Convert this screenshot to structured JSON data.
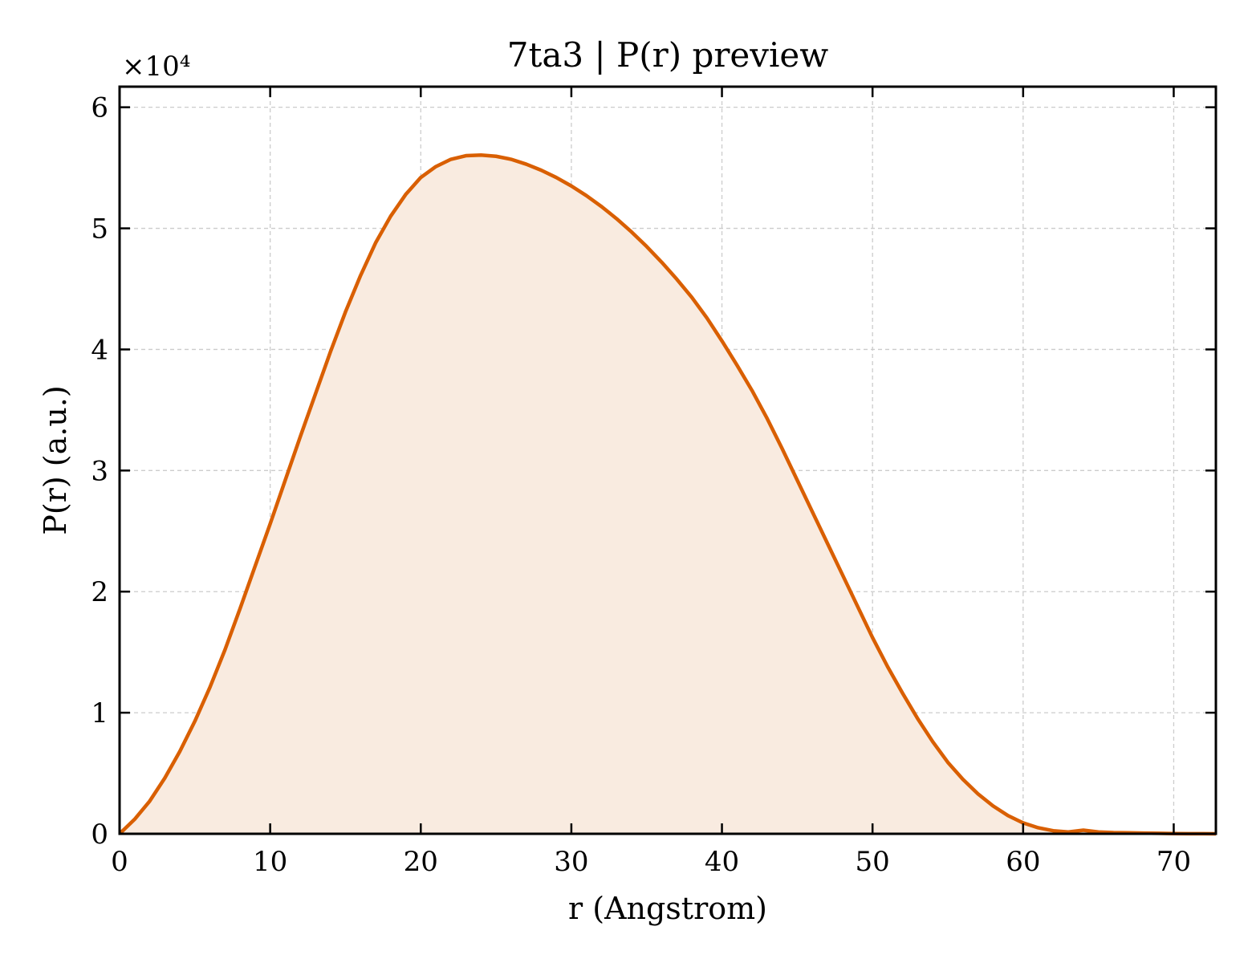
{
  "chart_data": {
    "type": "area",
    "title": "7ta3 | P(r) preview",
    "xlabel": "r (Angstrom)",
    "ylabel": "P(r) (a.u.)",
    "y_multiplier_label": "×10⁴",
    "xlim": [
      0,
      72.8
    ],
    "ylim": [
      0,
      61700
    ],
    "xticks": [
      0,
      10,
      20,
      30,
      40,
      50,
      60,
      70
    ],
    "yticks": [
      0,
      10000,
      20000,
      30000,
      40000,
      50000,
      60000
    ],
    "ytick_labels": [
      "0",
      "1",
      "2",
      "3",
      "4",
      "5",
      "6"
    ],
    "grid": true,
    "line_color": "#d95f02",
    "fill_color": "#f9ebe0",
    "series": [
      {
        "x": [
          0,
          1,
          2,
          3,
          4,
          5,
          6,
          7,
          8,
          9,
          10,
          11,
          12,
          13,
          14,
          15,
          16,
          17,
          18,
          19,
          20,
          21,
          22,
          23,
          24,
          25,
          26,
          27,
          28,
          29,
          30,
          31,
          32,
          33,
          34,
          35,
          36,
          37,
          38,
          39,
          40,
          41,
          42,
          43,
          44,
          45,
          46,
          47,
          48,
          49,
          50,
          51,
          52,
          53,
          54,
          55,
          56,
          57,
          58,
          59,
          60,
          61,
          62,
          63,
          64,
          65,
          66,
          67,
          68,
          69,
          70,
          71,
          72,
          72.8
        ],
        "y": [
          0,
          1200,
          2700,
          4600,
          6800,
          9300,
          12100,
          15200,
          18600,
          22100,
          25600,
          29200,
          32800,
          36300,
          39800,
          43100,
          46100,
          48800,
          51000,
          52800,
          54200,
          55100,
          55700,
          56000,
          56050,
          55950,
          55700,
          55300,
          54800,
          54200,
          53500,
          52700,
          51800,
          50800,
          49700,
          48500,
          47200,
          45800,
          44300,
          42600,
          40700,
          38700,
          36600,
          34300,
          31800,
          29200,
          26600,
          24000,
          21400,
          18800,
          16200,
          13800,
          11600,
          9500,
          7600,
          5900,
          4500,
          3300,
          2300,
          1500,
          900,
          500,
          250,
          150,
          300,
          150,
          100,
          80,
          60,
          40,
          20,
          10,
          5,
          0
        ]
      }
    ]
  }
}
